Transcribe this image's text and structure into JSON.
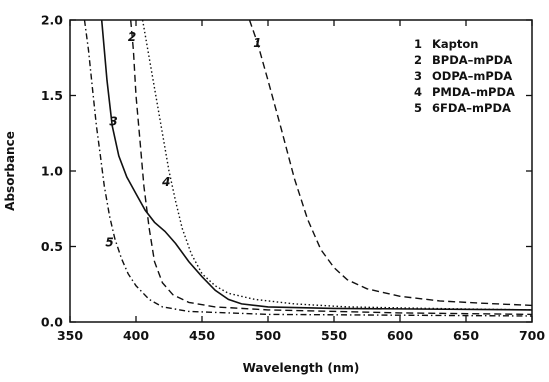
{
  "chart_data": {
    "type": "line",
    "xlabel": "Wavelength (nm)",
    "ylabel": "Absorbance",
    "xlim": [
      350,
      700
    ],
    "ylim": [
      0.0,
      2.0
    ],
    "xticks": [
      350,
      400,
      450,
      500,
      550,
      600,
      650,
      700
    ],
    "xtick_labels": [
      "350",
      "400",
      "450",
      "500",
      "550",
      "600",
      "650",
      "700"
    ],
    "yticks": [
      0.0,
      0.5,
      1.0,
      1.5,
      2.0
    ],
    "ytick_labels": [
      "0.0",
      "0.5",
      "1.0",
      "1.5",
      "2.0"
    ],
    "legend_position": "top-right",
    "grid": false,
    "series": [
      {
        "name": "Kapton",
        "number": "1",
        "dash": "dashed",
        "label_at": [
          492,
          1.82
        ],
        "points": [
          [
            486,
            2.0
          ],
          [
            492,
            1.85
          ],
          [
            500,
            1.6
          ],
          [
            510,
            1.28
          ],
          [
            520,
            0.95
          ],
          [
            530,
            0.68
          ],
          [
            540,
            0.48
          ],
          [
            550,
            0.36
          ],
          [
            560,
            0.28
          ],
          [
            575,
            0.22
          ],
          [
            600,
            0.17
          ],
          [
            630,
            0.14
          ],
          [
            660,
            0.125
          ],
          [
            700,
            0.11
          ]
        ]
      },
      {
        "name": "BPDA–mPDA",
        "number": "2",
        "dash": "dashed",
        "label_at": [
          397,
          1.86
        ],
        "points": [
          [
            396,
            2.0
          ],
          [
            398,
            1.8
          ],
          [
            400,
            1.5
          ],
          [
            403,
            1.2
          ],
          [
            406,
            0.9
          ],
          [
            410,
            0.62
          ],
          [
            414,
            0.4
          ],
          [
            420,
            0.26
          ],
          [
            428,
            0.18
          ],
          [
            440,
            0.13
          ],
          [
            460,
            0.1
          ],
          [
            500,
            0.08
          ],
          [
            600,
            0.06
          ],
          [
            700,
            0.05
          ]
        ]
      },
      {
        "name": "ODPA–mPDA",
        "number": "3",
        "dash": "solid",
        "label_at": [
          383,
          1.3
        ],
        "points": [
          [
            374,
            2.0
          ],
          [
            378,
            1.6
          ],
          [
            382,
            1.3
          ],
          [
            387,
            1.1
          ],
          [
            393,
            0.96
          ],
          [
            400,
            0.85
          ],
          [
            407,
            0.74
          ],
          [
            414,
            0.66
          ],
          [
            422,
            0.6
          ],
          [
            430,
            0.52
          ],
          [
            440,
            0.4
          ],
          [
            450,
            0.3
          ],
          [
            460,
            0.21
          ],
          [
            470,
            0.15
          ],
          [
            480,
            0.12
          ],
          [
            500,
            0.1
          ],
          [
            550,
            0.09
          ],
          [
            700,
            0.08
          ]
        ]
      },
      {
        "name": "PMDA–mPDA",
        "number": "4",
        "dash": "dotted",
        "label_at": [
          423,
          0.9
        ],
        "points": [
          [
            405,
            2.0
          ],
          [
            410,
            1.75
          ],
          [
            415,
            1.5
          ],
          [
            420,
            1.25
          ],
          [
            425,
            1.0
          ],
          [
            430,
            0.8
          ],
          [
            435,
            0.62
          ],
          [
            442,
            0.45
          ],
          [
            450,
            0.32
          ],
          [
            460,
            0.24
          ],
          [
            470,
            0.19
          ],
          [
            490,
            0.15
          ],
          [
            520,
            0.12
          ],
          [
            560,
            0.1
          ],
          [
            620,
            0.09
          ],
          [
            700,
            0.08
          ]
        ]
      },
      {
        "name": "6FDA–mPDA",
        "number": "5",
        "dash": "dashdot",
        "label_at": [
          380,
          0.5
        ],
        "points": [
          [
            361,
            2.0
          ],
          [
            364,
            1.8
          ],
          [
            367,
            1.55
          ],
          [
            370,
            1.3
          ],
          [
            373,
            1.1
          ],
          [
            376,
            0.9
          ],
          [
            380,
            0.7
          ],
          [
            384,
            0.55
          ],
          [
            389,
            0.42
          ],
          [
            394,
            0.32
          ],
          [
            400,
            0.24
          ],
          [
            410,
            0.15
          ],
          [
            420,
            0.1
          ],
          [
            440,
            0.07
          ],
          [
            500,
            0.05
          ],
          [
            700,
            0.04
          ]
        ]
      }
    ]
  }
}
